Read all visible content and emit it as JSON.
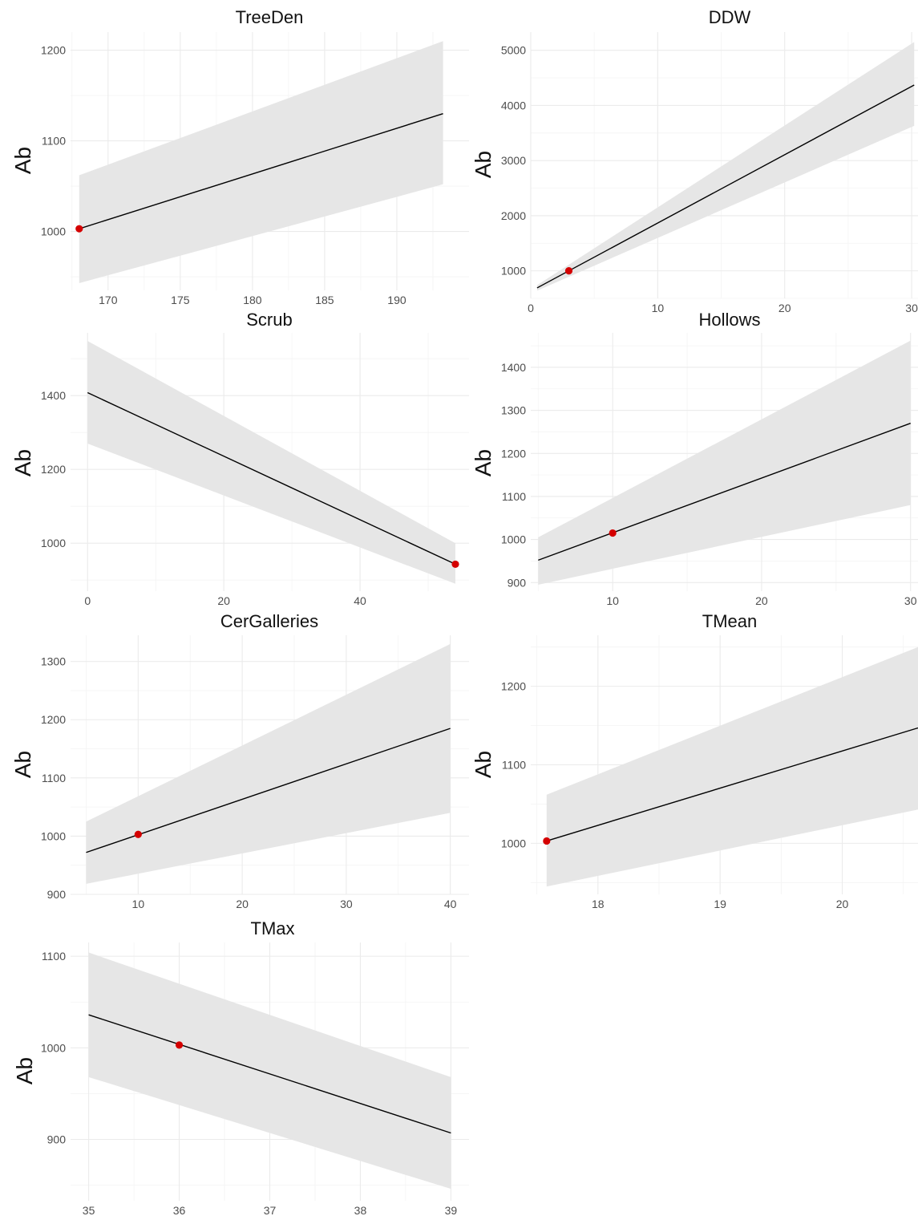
{
  "style": {
    "band_color": "#e6e6e6",
    "line_color": "#000000",
    "point_color": "#d40000",
    "grid_color": "#ebebeb"
  },
  "chart_data": [
    {
      "type": "line",
      "title": "TreeDen",
      "xlabel": "",
      "ylabel": "Ab",
      "xlim": [
        167.4,
        195
      ],
      "ylim": [
        935,
        1220
      ],
      "xticks": [
        170,
        175,
        180,
        185,
        190
      ],
      "yticks": [
        1000,
        1100,
        1200
      ],
      "grid": true,
      "fit": {
        "x": [
          168,
          193.2
        ],
        "y": [
          1003,
          1130
        ]
      },
      "band": {
        "x": [
          168,
          193.2
        ],
        "lower": [
          943,
          1052
        ],
        "upper": [
          1062,
          1210
        ]
      },
      "point": {
        "x": 168,
        "y": 1003
      }
    },
    {
      "type": "line",
      "title": "DDW",
      "xlabel": "",
      "ylabel": "Ab",
      "xlim": [
        0,
        30.5
      ],
      "ylim": [
        500,
        5330
      ],
      "xticks": [
        0,
        10,
        20,
        30
      ],
      "yticks": [
        1000,
        2000,
        3000,
        4000,
        5000
      ],
      "grid": true,
      "fit": {
        "x": [
          0.5,
          30.2
        ],
        "y": [
          690,
          4370
        ]
      },
      "band": {
        "x": [
          0.5,
          30.2
        ],
        "lower": [
          640,
          3630
        ],
        "upper": [
          740,
          5150
        ]
      },
      "point": {
        "x": 3,
        "y": 1000
      }
    },
    {
      "type": "line",
      "title": "Scrub",
      "xlabel": "",
      "ylabel": "Ab",
      "xlim": [
        -2.5,
        56
      ],
      "ylim": [
        870,
        1570
      ],
      "xticks": [
        0,
        20,
        40
      ],
      "yticks": [
        1000,
        1200,
        1400
      ],
      "grid": true,
      "fit": {
        "x": [
          0,
          54
        ],
        "y": [
          1408,
          943
        ]
      },
      "band": {
        "x": [
          0,
          54
        ],
        "lower": [
          1270,
          890
        ],
        "upper": [
          1548,
          1000
        ]
      },
      "point": {
        "x": 54,
        "y": 943
      }
    },
    {
      "type": "line",
      "title": "Hollows",
      "xlabel": "",
      "ylabel": "Ab",
      "xlim": [
        4.5,
        30.5
      ],
      "ylim": [
        880,
        1480
      ],
      "xticks": [
        10,
        20,
        30
      ],
      "yticks": [
        900,
        1000,
        1100,
        1200,
        1300,
        1400
      ],
      "grid": true,
      "fit": {
        "x": [
          5,
          30
        ],
        "y": [
          952,
          1270
        ]
      },
      "band": {
        "x": [
          5,
          30
        ],
        "lower": [
          895,
          1080
        ],
        "upper": [
          1005,
          1462
        ]
      },
      "point": {
        "x": 10,
        "y": 1015
      }
    },
    {
      "type": "line",
      "title": "CerGalleries",
      "xlabel": "",
      "ylabel": "Ab",
      "xlim": [
        3.5,
        41.8
      ],
      "ylim": [
        900,
        1345
      ],
      "xticks": [
        10,
        20,
        30,
        40
      ],
      "yticks": [
        900,
        1000,
        1100,
        1200,
        1300
      ],
      "grid": true,
      "fit": {
        "x": [
          5,
          40
        ],
        "y": [
          972,
          1185
        ]
      },
      "band": {
        "x": [
          5,
          40
        ],
        "lower": [
          918,
          1040
        ],
        "upper": [
          1025,
          1330
        ]
      },
      "point": {
        "x": 10,
        "y": 1003
      }
    },
    {
      "type": "line",
      "title": "TMean",
      "xlabel": "",
      "ylabel": "Ab",
      "xlim": [
        17.45,
        20.62
      ],
      "ylim": [
        935,
        1265
      ],
      "xticks": [
        18,
        19,
        20
      ],
      "yticks": [
        1000,
        1100,
        1200
      ],
      "grid": true,
      "fit": {
        "x": [
          17.58,
          20.62
        ],
        "y": [
          1003,
          1147
        ]
      },
      "band": {
        "x": [
          17.58,
          20.62
        ],
        "lower": [
          945,
          1043
        ],
        "upper": [
          1062,
          1250
        ]
      },
      "point": {
        "x": 17.58,
        "y": 1003
      }
    },
    {
      "type": "line",
      "title": "TMax",
      "xlabel": "",
      "ylabel": "Ab",
      "xlim": [
        34.8,
        39.2
      ],
      "ylim": [
        833,
        1115
      ],
      "xticks": [
        35,
        36,
        37,
        38,
        39
      ],
      "yticks": [
        900,
        1000,
        1100
      ],
      "grid": true,
      "fit": {
        "x": [
          35,
          39
        ],
        "y": [
          1036,
          907
        ]
      },
      "band": {
        "x": [
          35,
          39
        ],
        "lower": [
          968,
          846
        ],
        "upper": [
          1104,
          968
        ]
      },
      "point": {
        "x": 36,
        "y": 1003
      }
    }
  ]
}
